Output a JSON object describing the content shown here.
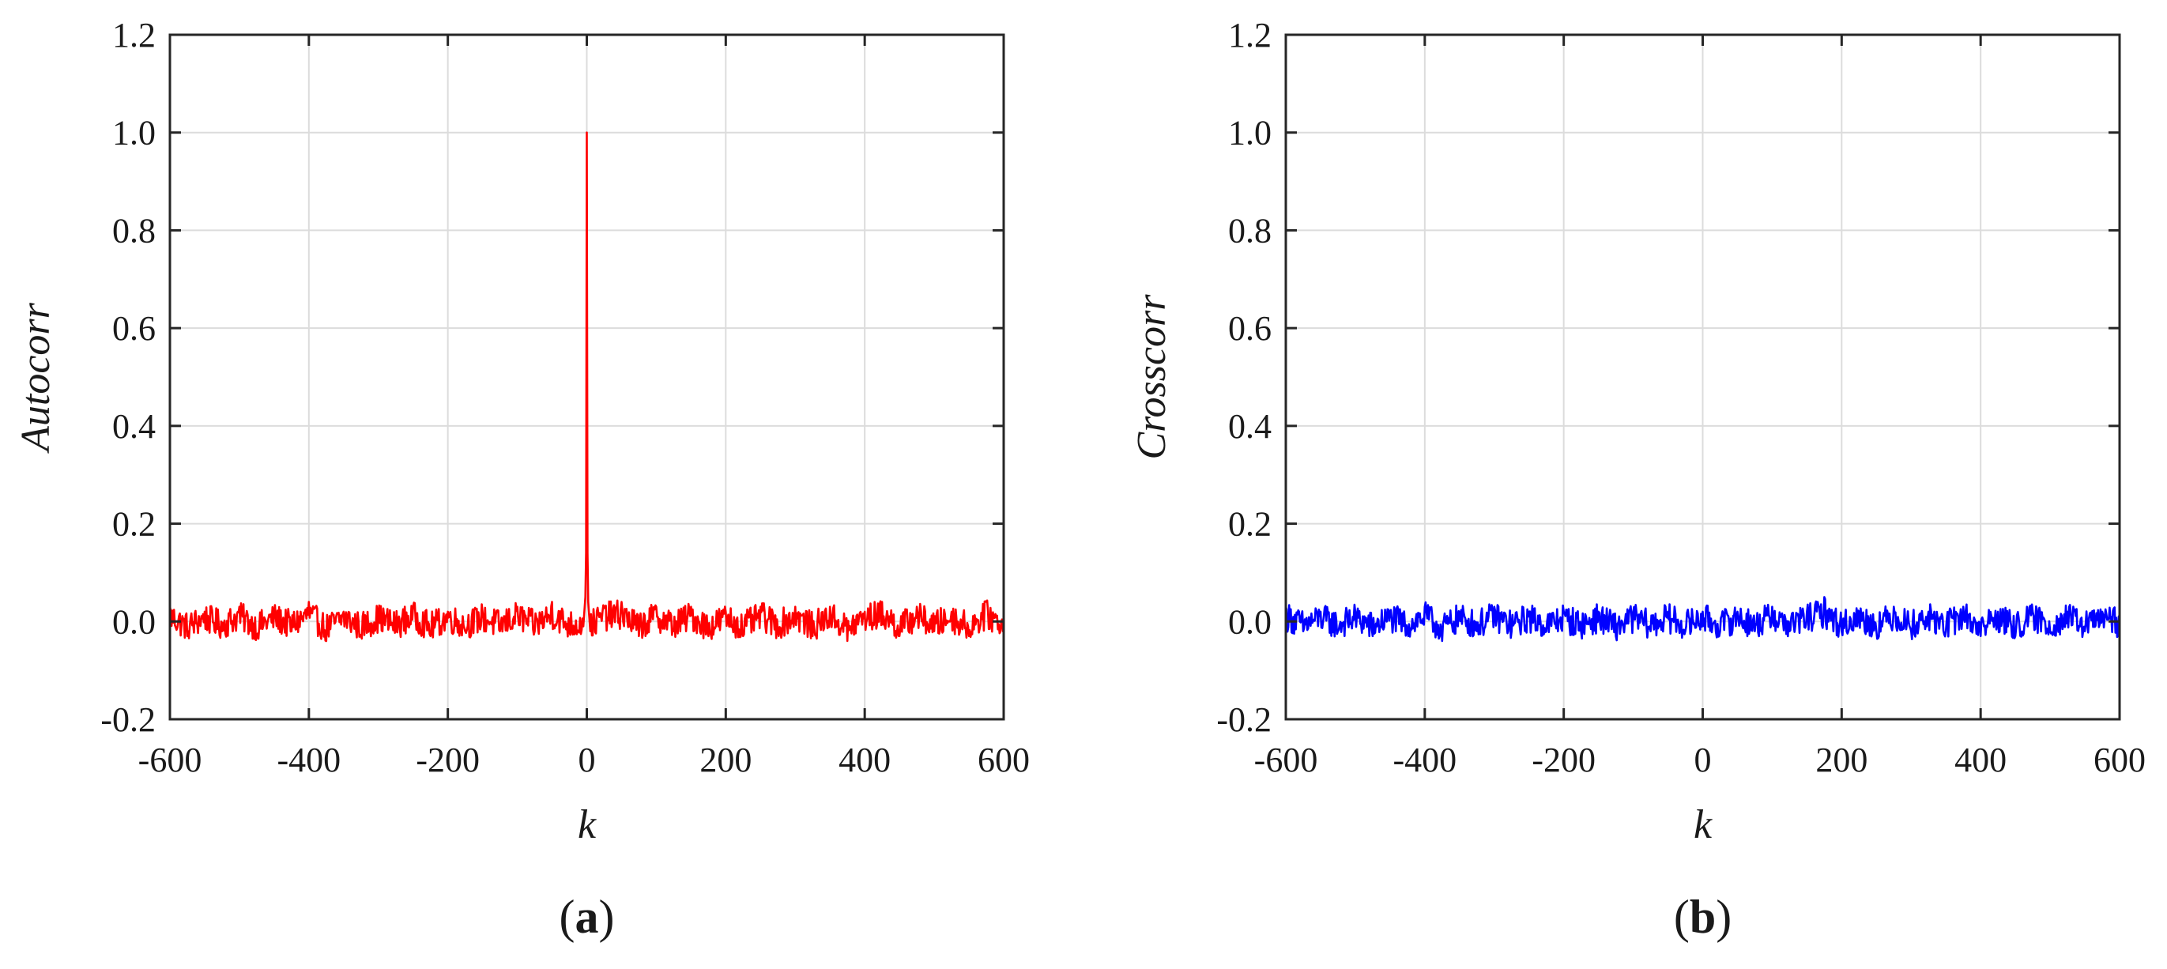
{
  "chart_data": [
    {
      "type": "line",
      "panel_label": "(a)",
      "panel_letter": "a",
      "xlabel": "k",
      "ylabel": "Autocorr",
      "xlim": [
        -600,
        600
      ],
      "ylim": [
        -0.2,
        1.2
      ],
      "x_ticks": [
        -600,
        -400,
        -200,
        0,
        200,
        400,
        600
      ],
      "x_tick_labels": [
        "-600",
        "-400",
        "-200",
        "0",
        "200",
        "400",
        "600"
      ],
      "y_ticks": [
        -0.2,
        0,
        0.2,
        0.4,
        0.6,
        0.8,
        1.0,
        1.2
      ],
      "y_tick_labels": [
        "-0.2",
        "0.0",
        "0.2",
        "0.4",
        "0.6",
        "0.8",
        "1.0",
        "1.2"
      ],
      "grid": true,
      "legend": "none",
      "series": [
        {
          "color": "#ff0000",
          "x": [
            -600,
            -575,
            -550,
            -525,
            -500,
            -475,
            -450,
            -425,
            -400,
            -375,
            -350,
            -325,
            -300,
            -275,
            -250,
            -225,
            -200,
            -175,
            -150,
            -125,
            -100,
            -75,
            -50,
            -25,
            -5,
            -2,
            -1,
            0,
            1,
            2,
            5,
            25,
            50,
            75,
            100,
            125,
            150,
            175,
            200,
            225,
            250,
            275,
            300,
            325,
            350,
            375,
            400,
            425,
            450,
            475,
            500,
            525,
            550,
            575,
            600
          ],
          "y": [
            0.03,
            -0.03,
            0.02,
            -0.02,
            0.03,
            -0.03,
            0.02,
            -0.02,
            0.04,
            -0.04,
            0.02,
            -0.03,
            0.02,
            -0.02,
            0.03,
            -0.03,
            0.02,
            -0.02,
            0.02,
            -0.02,
            0.03,
            -0.02,
            0.04,
            -0.02,
            -0.01,
            0.05,
            0.14,
            1.0,
            0.14,
            0.04,
            -0.02,
            0.03,
            0.04,
            -0.03,
            0.03,
            -0.02,
            0.03,
            -0.03,
            0.02,
            -0.03,
            0.03,
            -0.02,
            0.03,
            -0.03,
            0.03,
            -0.04,
            0.02,
            0.04,
            -0.03,
            0.03,
            -0.02,
            0.02,
            -0.03,
            0.04,
            -0.02
          ]
        }
      ]
    },
    {
      "type": "line",
      "panel_label": "(b)",
      "panel_letter": "b",
      "xlabel": "k",
      "ylabel": "Crosscorr",
      "xlim": [
        -600,
        600
      ],
      "ylim": [
        -0.2,
        1.2
      ],
      "x_ticks": [
        -600,
        -400,
        -200,
        0,
        200,
        400,
        600
      ],
      "x_tick_labels": [
        "-600",
        "-400",
        "-200",
        "0",
        "200",
        "400",
        "600"
      ],
      "y_ticks": [
        -0.2,
        0,
        0.2,
        0.4,
        0.6,
        0.8,
        1.0,
        1.2
      ],
      "y_tick_labels": [
        "-0.2",
        "0.0",
        "0.2",
        "0.4",
        "0.6",
        "0.8",
        "1.0",
        "1.2"
      ],
      "grid": true,
      "legend": "none",
      "series": [
        {
          "color": "#0000ff",
          "x": [
            -600,
            -575,
            -550,
            -525,
            -500,
            -475,
            -450,
            -425,
            -400,
            -375,
            -350,
            -325,
            -300,
            -275,
            -250,
            -225,
            -200,
            -175,
            -150,
            -125,
            -100,
            -75,
            -50,
            -25,
            0,
            25,
            50,
            75,
            100,
            125,
            150,
            175,
            200,
            225,
            250,
            275,
            300,
            325,
            350,
            375,
            400,
            425,
            450,
            475,
            500,
            525,
            550,
            575,
            600
          ],
          "y": [
            0.03,
            -0.02,
            0.02,
            -0.02,
            0.02,
            -0.03,
            0.02,
            -0.02,
            0.03,
            -0.04,
            0.02,
            -0.02,
            0.03,
            -0.02,
            0.02,
            -0.02,
            0.02,
            -0.02,
            0.02,
            -0.03,
            0.02,
            -0.02,
            0.02,
            -0.02,
            0.02,
            -0.02,
            0.02,
            -0.02,
            0.03,
            -0.02,
            0.02,
            0.05,
            -0.02,
            0.02,
            -0.02,
            0.03,
            -0.02,
            0.02,
            -0.02,
            0.03,
            -0.03,
            0.02,
            -0.03,
            0.02,
            -0.02,
            0.02,
            -0.02,
            0.02,
            -0.01
          ]
        }
      ]
    }
  ]
}
